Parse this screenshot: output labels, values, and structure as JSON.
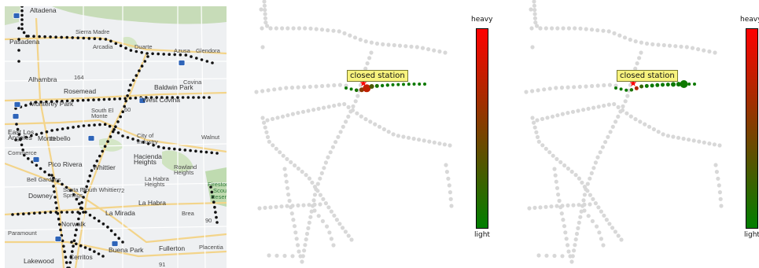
{
  "map": {
    "labels": [
      {
        "text": "Altadena",
        "cls": "city"
      },
      {
        "text": "Sierra Madre",
        "cls": ""
      },
      {
        "text": "Pasadena",
        "cls": "city"
      },
      {
        "text": "Arcadia",
        "cls": ""
      },
      {
        "text": "Duarte",
        "cls": ""
      },
      {
        "text": "Azusa",
        "cls": ""
      },
      {
        "text": "Glendora",
        "cls": ""
      },
      {
        "text": "Alhambra",
        "cls": "city"
      },
      {
        "text": "Baldwin Park",
        "cls": "city"
      },
      {
        "text": "Covina",
        "cls": ""
      },
      {
        "text": "Rosemead",
        "cls": "city"
      },
      {
        "text": "Monterey Park",
        "cls": "city"
      },
      {
        "text": "West Covina",
        "cls": "city"
      },
      {
        "text": "South El",
        "cls": ""
      },
      {
        "text": "Monte",
        "cls": ""
      },
      {
        "text": "East Los",
        "cls": "city"
      },
      {
        "text": "Angeles",
        "cls": "city"
      },
      {
        "text": "Montebello",
        "cls": "city"
      },
      {
        "text": "City of",
        "cls": ""
      },
      {
        "text": "Industry",
        "cls": ""
      },
      {
        "text": "Walnut",
        "cls": ""
      },
      {
        "text": "Commerce",
        "cls": ""
      },
      {
        "text": "Pico Rivera",
        "cls": "city"
      },
      {
        "text": "Whittier",
        "cls": "city"
      },
      {
        "text": "Hacienda",
        "cls": "city"
      },
      {
        "text": "Heights",
        "cls": "city"
      },
      {
        "text": "Rowland",
        "cls": ""
      },
      {
        "text": "Heights",
        "cls": ""
      },
      {
        "text": "Bell Gardens",
        "cls": ""
      },
      {
        "text": "Santa Fe",
        "cls": ""
      },
      {
        "text": "Springs",
        "cls": ""
      },
      {
        "text": "South Whittier",
        "cls": ""
      },
      {
        "text": "La Habra",
        "cls": ""
      },
      {
        "text": "Heights",
        "cls": ""
      },
      {
        "text": "Downey",
        "cls": "city"
      },
      {
        "text": "La Habra",
        "cls": "city"
      },
      {
        "text": "Firestone",
        "cls": "green"
      },
      {
        "text": "Scout",
        "cls": "green"
      },
      {
        "text": "Reserve",
        "cls": "green"
      },
      {
        "text": "La Mirada",
        "cls": "city"
      },
      {
        "text": "Brea",
        "cls": ""
      },
      {
        "text": "Paramount",
        "cls": ""
      },
      {
        "text": "Norwalk",
        "cls": "city"
      },
      {
        "text": "Buena Park",
        "cls": "city"
      },
      {
        "text": "Fullerton",
        "cls": "city"
      },
      {
        "text": "Placentia",
        "cls": ""
      },
      {
        "text": "Lakewood",
        "cls": "city"
      },
      {
        "text": "Cerritos",
        "cls": "city"
      },
      {
        "text": "164",
        "cls": ""
      },
      {
        "text": "60",
        "cls": ""
      },
      {
        "text": "72",
        "cls": ""
      },
      {
        "text": "90",
        "cls": ""
      },
      {
        "text": "91",
        "cls": ""
      },
      {
        "text": "19",
        "cls": ""
      }
    ]
  },
  "panels": [
    {
      "closed_label": "closed station",
      "colorbar": {
        "top_label": "heavy",
        "bottom_label": "light",
        "top_color": "#ff0000",
        "bottom_color": "#007f00"
      },
      "closed_station": {
        "marker": "star",
        "color": "#ff0000"
      },
      "highlighted_stations": [
        {
          "load": 0.05,
          "size": 2.0
        },
        {
          "load": 0.05,
          "size": 2.0
        },
        {
          "load": 0.1,
          "size": 2.3
        },
        {
          "load": 0.55,
          "size": 3.0
        },
        {
          "load": 0.75,
          "size": 5.0
        },
        {
          "load": 0.3,
          "size": 3.0
        },
        {
          "load": 0.1,
          "size": 2.5
        },
        {
          "load": 0.05,
          "size": 2.2
        },
        {
          "load": 0.05,
          "size": 2.2
        },
        {
          "load": 0.05,
          "size": 2.0
        },
        {
          "load": 0.05,
          "size": 2.0
        },
        {
          "load": 0.05,
          "size": 2.0
        },
        {
          "load": 0.05,
          "size": 2.0
        },
        {
          "load": 0.05,
          "size": 2.0
        },
        {
          "load": 0.05,
          "size": 2.0
        },
        {
          "load": 0.05,
          "size": 2.0
        }
      ]
    },
    {
      "closed_label": "closed station",
      "colorbar": {
        "top_label": "heavy",
        "bottom_label": "light",
        "top_color": "#ff0000",
        "bottom_color": "#007f00"
      },
      "closed_station": {
        "marker": "star",
        "color": "#ff0000"
      },
      "highlighted_stations": [
        {
          "load": 0.05,
          "size": 2.0
        },
        {
          "load": 0.05,
          "size": 2.0
        },
        {
          "load": 0.05,
          "size": 2.0
        },
        {
          "load": 0.1,
          "size": 2.2
        },
        {
          "load": 0.7,
          "size": 2.5
        },
        {
          "load": 0.2,
          "size": 2.5
        },
        {
          "load": 0.05,
          "size": 2.5
        },
        {
          "load": 0.05,
          "size": 2.5
        },
        {
          "load": 0.05,
          "size": 2.5
        },
        {
          "load": 0.05,
          "size": 2.5
        },
        {
          "load": 0.05,
          "size": 2.5
        },
        {
          "load": 0.05,
          "size": 3.0
        },
        {
          "load": 0.05,
          "size": 3.0
        },
        {
          "load": 0.05,
          "size": 5.0
        },
        {
          "load": 0.05,
          "size": 2.0
        },
        {
          "load": 0.05,
          "size": 2.0
        }
      ]
    }
  ]
}
